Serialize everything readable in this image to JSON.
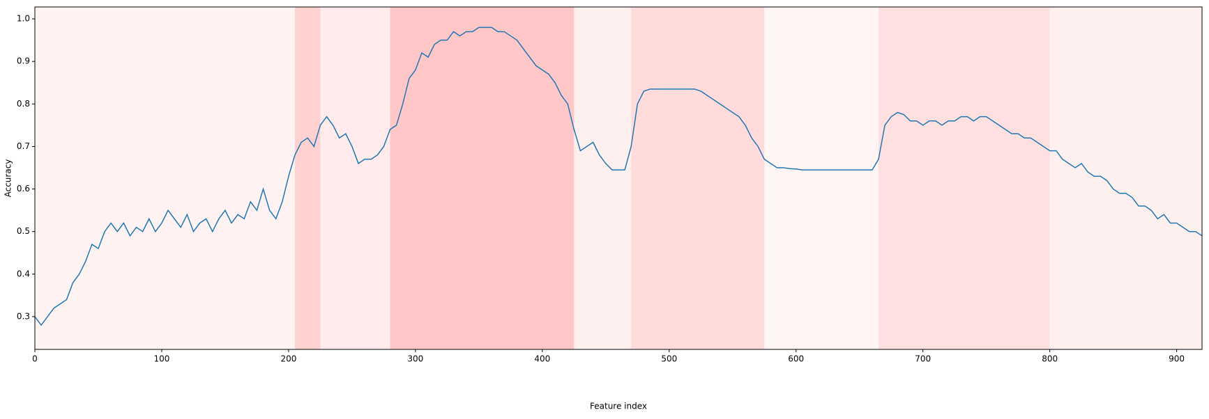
{
  "chart_data": {
    "type": "line",
    "x_label": "Feature index",
    "y_label": "Accuracy",
    "x": [
      0,
      5,
      10,
      15,
      20,
      25,
      30,
      35,
      40,
      45,
      50,
      55,
      60,
      65,
      70,
      75,
      80,
      85,
      90,
      95,
      100,
      105,
      110,
      115,
      120,
      125,
      130,
      135,
      140,
      145,
      150,
      155,
      160,
      165,
      170,
      175,
      180,
      185,
      190,
      195,
      200,
      205,
      210,
      215,
      220,
      225,
      230,
      235,
      240,
      245,
      250,
      255,
      260,
      265,
      270,
      275,
      280,
      285,
      290,
      295,
      300,
      305,
      310,
      315,
      320,
      325,
      330,
      335,
      340,
      345,
      350,
      355,
      360,
      365,
      370,
      375,
      380,
      385,
      390,
      395,
      400,
      405,
      410,
      415,
      420,
      425,
      430,
      435,
      440,
      445,
      450,
      455,
      460,
      465,
      470,
      475,
      480,
      485,
      490,
      495,
      500,
      505,
      510,
      515,
      520,
      525,
      530,
      535,
      540,
      545,
      550,
      555,
      560,
      565,
      570,
      575,
      580,
      585,
      590,
      595,
      600,
      605,
      610,
      615,
      620,
      625,
      630,
      635,
      640,
      645,
      650,
      655,
      660,
      665,
      670,
      675,
      680,
      685,
      690,
      695,
      700,
      705,
      710,
      715,
      720,
      725,
      730,
      735,
      740,
      745,
      750,
      755,
      760,
      765,
      770,
      775,
      780,
      785,
      790,
      795,
      800,
      805,
      810,
      815,
      820,
      825,
      830,
      835,
      840,
      845,
      850,
      855,
      860,
      865,
      870,
      875,
      880,
      885,
      890,
      895,
      900,
      905,
      910,
      915,
      920
    ],
    "series": [
      {
        "color": "#1f77b4",
        "values": [
          0.3,
          0.28,
          0.3,
          0.32,
          0.33,
          0.34,
          0.38,
          0.4,
          0.43,
          0.47,
          0.46,
          0.5,
          0.52,
          0.5,
          0.52,
          0.49,
          0.51,
          0.5,
          0.53,
          0.5,
          0.52,
          0.55,
          0.53,
          0.51,
          0.54,
          0.5,
          0.52,
          0.53,
          0.5,
          0.53,
          0.55,
          0.52,
          0.54,
          0.53,
          0.57,
          0.55,
          0.6,
          0.55,
          0.53,
          0.57,
          0.63,
          0.68,
          0.71,
          0.72,
          0.7,
          0.75,
          0.77,
          0.75,
          0.72,
          0.73,
          0.7,
          0.66,
          0.67,
          0.67,
          0.68,
          0.7,
          0.74,
          0.75,
          0.8,
          0.86,
          0.88,
          0.92,
          0.91,
          0.94,
          0.95,
          0.95,
          0.97,
          0.96,
          0.97,
          0.97,
          0.98,
          0.98,
          0.98,
          0.97,
          0.97,
          0.96,
          0.95,
          0.93,
          0.91,
          0.89,
          0.88,
          0.87,
          0.85,
          0.82,
          0.8,
          0.74,
          0.69,
          0.7,
          0.71,
          0.68,
          0.66,
          0.645,
          0.645,
          0.645,
          0.7,
          0.8,
          0.83,
          0.835,
          0.835,
          0.835,
          0.835,
          0.835,
          0.835,
          0.835,
          0.835,
          0.83,
          0.82,
          0.81,
          0.8,
          0.79,
          0.78,
          0.77,
          0.75,
          0.72,
          0.7,
          0.67,
          0.66,
          0.65,
          0.65,
          0.648,
          0.647,
          0.645,
          0.645,
          0.645,
          0.645,
          0.645,
          0.645,
          0.645,
          0.645,
          0.645,
          0.645,
          0.645,
          0.645,
          0.67,
          0.75,
          0.77,
          0.78,
          0.775,
          0.76,
          0.76,
          0.75,
          0.76,
          0.76,
          0.75,
          0.76,
          0.76,
          0.77,
          0.77,
          0.76,
          0.77,
          0.77,
          0.76,
          0.75,
          0.74,
          0.73,
          0.73,
          0.72,
          0.72,
          0.71,
          0.7,
          0.69,
          0.69,
          0.67,
          0.66,
          0.65,
          0.66,
          0.64,
          0.63,
          0.63,
          0.62,
          0.6,
          0.59,
          0.59,
          0.58,
          0.56,
          0.56,
          0.55,
          0.53,
          0.54,
          0.52,
          0.52,
          0.51,
          0.5,
          0.5,
          0.49
        ]
      }
    ],
    "highlight_color": "#ff0000",
    "highlights": [
      {
        "x": [
          0,
          205
        ],
        "alpha": 0.05
      },
      {
        "x": [
          205,
          225
        ],
        "alpha": 0.18
      },
      {
        "x": [
          225,
          280
        ],
        "alpha": 0.08
      },
      {
        "x": [
          280,
          425
        ],
        "alpha": 0.22
      },
      {
        "x": [
          425,
          470
        ],
        "alpha": 0.06
      },
      {
        "x": [
          470,
          575
        ],
        "alpha": 0.14
      },
      {
        "x": [
          575,
          665
        ],
        "alpha": 0.04
      },
      {
        "x": [
          665,
          800
        ],
        "alpha": 0.12
      },
      {
        "x": [
          800,
          920
        ],
        "alpha": 0.06
      }
    ],
    "xlim": [
      0,
      920
    ],
    "ylim": [
      0.223,
      1.028
    ],
    "xticks": [
      0,
      100,
      200,
      300,
      400,
      500,
      600,
      700,
      800,
      900
    ],
    "yticks": [
      0.3,
      0.4,
      0.5,
      0.6,
      0.7,
      0.8,
      0.9,
      {
        "value": 1,
        "label": "1.0"
      }
    ]
  }
}
